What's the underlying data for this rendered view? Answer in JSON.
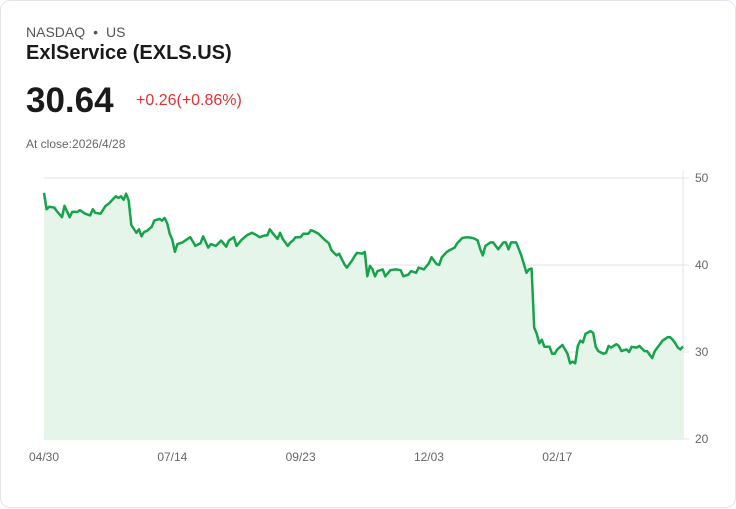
{
  "header": {
    "exchange": "NASDAQ",
    "separator": "•",
    "region": "US",
    "title": "ExlService (EXLS.US)",
    "price": "30.64",
    "change": "+0.26(+0.86%)",
    "close_label": "At close:2026/4/28"
  },
  "colors": {
    "line": "#16a34a",
    "fill": "#e6f5ea",
    "change": "#e03131",
    "grid": "#e3e3e3"
  },
  "chart_data": {
    "type": "area",
    "title": "ExlService (EXLS.US)",
    "xlabel": "",
    "ylabel": "",
    "ylim": [
      20,
      50
    ],
    "y_ticks": [
      "50",
      "40",
      "30",
      "20"
    ],
    "y_tick_values": [
      50,
      40,
      30,
      20
    ],
    "y_axis_side": "right",
    "x_range": [
      0,
      249
    ],
    "x_ticks": [
      {
        "label": "04/30",
        "x": 0
      },
      {
        "label": "07/14",
        "x": 50
      },
      {
        "label": "09/23",
        "x": 100
      },
      {
        "label": "12/03",
        "x": 150
      },
      {
        "label": "02/17",
        "x": 200
      }
    ],
    "grid": true,
    "points": [
      [
        0,
        48.3
      ],
      [
        1,
        46.4
      ],
      [
        2,
        46.7
      ],
      [
        4,
        46.6
      ],
      [
        5,
        46.2
      ],
      [
        7,
        45.5
      ],
      [
        8,
        46.8
      ],
      [
        10,
        45.5
      ],
      [
        11,
        46.1
      ],
      [
        13,
        46.1
      ],
      [
        14,
        46.3
      ],
      [
        16,
        45.9
      ],
      [
        18,
        45.7
      ],
      [
        19,
        46.4
      ],
      [
        20,
        46.0
      ],
      [
        22,
        45.9
      ],
      [
        24,
        46.8
      ],
      [
        25,
        47.0
      ],
      [
        27,
        47.6
      ],
      [
        28,
        47.9
      ],
      [
        29,
        47.7
      ],
      [
        30,
        47.9
      ],
      [
        31,
        47.5
      ],
      [
        32,
        48.2
      ],
      [
        33,
        47.4
      ],
      [
        34,
        44.6
      ],
      [
        36,
        43.7
      ],
      [
        37,
        44.1
      ],
      [
        38,
        43.3
      ],
      [
        39,
        43.8
      ],
      [
        40,
        43.9
      ],
      [
        42,
        44.4
      ],
      [
        43,
        45.1
      ],
      [
        45,
        45.3
      ],
      [
        46,
        45.1
      ],
      [
        47,
        45.4
      ],
      [
        48,
        44.8
      ],
      [
        49,
        43.6
      ],
      [
        50,
        42.9
      ],
      [
        51,
        41.5
      ],
      [
        52,
        42.4
      ],
      [
        54,
        42.6
      ],
      [
        55,
        42.8
      ],
      [
        57,
        43.2
      ],
      [
        59,
        42.2
      ],
      [
        61,
        42.5
      ],
      [
        62,
        43.3
      ],
      [
        64,
        42.0
      ],
      [
        65,
        42.4
      ],
      [
        67,
        42.2
      ],
      [
        69,
        42.8
      ],
      [
        71,
        42.1
      ],
      [
        72,
        42.8
      ],
      [
        74,
        43.2
      ],
      [
        75,
        42.2
      ],
      [
        77,
        42.9
      ],
      [
        79,
        43.4
      ],
      [
        81,
        43.7
      ],
      [
        83,
        43.4
      ],
      [
        84,
        43.2
      ],
      [
        86,
        43.4
      ],
      [
        87,
        43.4
      ],
      [
        88,
        44.1
      ],
      [
        89,
        43.7
      ],
      [
        91,
        43.0
      ],
      [
        92,
        43.7
      ],
      [
        93,
        43.0
      ],
      [
        95,
        42.2
      ],
      [
        96,
        42.6
      ],
      [
        97,
        42.8
      ],
      [
        98,
        43.2
      ],
      [
        100,
        43.2
      ],
      [
        101,
        43.6
      ],
      [
        103,
        43.6
      ],
      [
        104,
        44.0
      ],
      [
        105,
        43.9
      ],
      [
        107,
        43.6
      ],
      [
        109,
        43.0
      ],
      [
        111,
        42.5
      ],
      [
        112,
        41.7
      ],
      [
        114,
        41.1
      ],
      [
        115,
        41.3
      ],
      [
        117,
        40.1
      ],
      [
        118,
        39.7
      ],
      [
        120,
        40.5
      ],
      [
        121,
        41.0
      ],
      [
        122,
        41.4
      ],
      [
        124,
        41.3
      ],
      [
        125,
        41.5
      ],
      [
        126,
        38.7
      ],
      [
        127,
        39.9
      ],
      [
        128,
        39.5
      ],
      [
        129,
        38.7
      ],
      [
        130,
        39.3
      ],
      [
        132,
        39.5
      ],
      [
        133,
        38.7
      ],
      [
        135,
        39.4
      ],
      [
        137,
        39.5
      ],
      [
        139,
        39.4
      ],
      [
        140,
        38.7
      ],
      [
        142,
        38.9
      ],
      [
        143,
        39.3
      ],
      [
        145,
        39.1
      ],
      [
        146,
        39.7
      ],
      [
        148,
        39.5
      ],
      [
        150,
        40.2
      ],
      [
        151,
        40.9
      ],
      [
        153,
        40.1
      ],
      [
        154,
        40.0
      ],
      [
        155,
        40.9
      ],
      [
        157,
        41.5
      ],
      [
        158,
        41.7
      ],
      [
        160,
        42.0
      ],
      [
        161,
        42.5
      ],
      [
        163,
        43.1
      ],
      [
        165,
        43.2
      ],
      [
        167,
        43.1
      ],
      [
        168,
        43.0
      ],
      [
        169,
        42.8
      ],
      [
        170,
        41.8
      ],
      [
        171,
        41.1
      ],
      [
        172,
        42.2
      ],
      [
        174,
        42.6
      ],
      [
        175,
        42.6
      ],
      [
        177,
        41.8
      ],
      [
        179,
        42.6
      ],
      [
        180,
        42.6
      ],
      [
        181,
        41.8
      ],
      [
        182,
        42.6
      ],
      [
        184,
        42.6
      ],
      [
        186,
        41.1
      ],
      [
        187,
        40.1
      ],
      [
        188,
        39.1
      ],
      [
        189,
        39.5
      ],
      [
        190,
        39.6
      ],
      [
        191,
        32.8
      ],
      [
        192,
        32.1
      ],
      [
        193,
        31.0
      ],
      [
        194,
        31.4
      ],
      [
        195,
        30.6
      ],
      [
        197,
        30.6
      ],
      [
        198,
        29.8
      ],
      [
        199,
        29.8
      ],
      [
        200,
        30.3
      ],
      [
        202,
        30.8
      ],
      [
        203,
        30.3
      ],
      [
        204,
        29.8
      ],
      [
        205,
        28.7
      ],
      [
        206,
        28.9
      ],
      [
        207,
        28.7
      ],
      [
        208,
        30.7
      ],
      [
        209,
        31.3
      ],
      [
        210,
        31.1
      ],
      [
        211,
        32.1
      ],
      [
        213,
        32.4
      ],
      [
        214,
        32.2
      ],
      [
        215,
        30.6
      ],
      [
        216,
        30.1
      ],
      [
        218,
        29.8
      ],
      [
        219,
        29.9
      ],
      [
        220,
        30.7
      ],
      [
        221,
        30.5
      ],
      [
        223,
        30.9
      ],
      [
        224,
        30.7
      ],
      [
        225,
        30.1
      ],
      [
        227,
        30.3
      ],
      [
        228,
        30.0
      ],
      [
        229,
        30.6
      ],
      [
        231,
        30.5
      ],
      [
        232,
        30.7
      ],
      [
        234,
        30.1
      ],
      [
        235,
        30.1
      ],
      [
        236,
        29.7
      ],
      [
        237,
        29.3
      ],
      [
        238,
        30.1
      ],
      [
        240,
        30.9
      ],
      [
        241,
        31.3
      ],
      [
        243,
        31.7
      ],
      [
        244,
        31.7
      ],
      [
        245,
        31.4
      ],
      [
        246,
        31.0
      ],
      [
        247,
        30.5
      ],
      [
        248,
        30.3
      ],
      [
        249,
        30.64
      ]
    ]
  }
}
